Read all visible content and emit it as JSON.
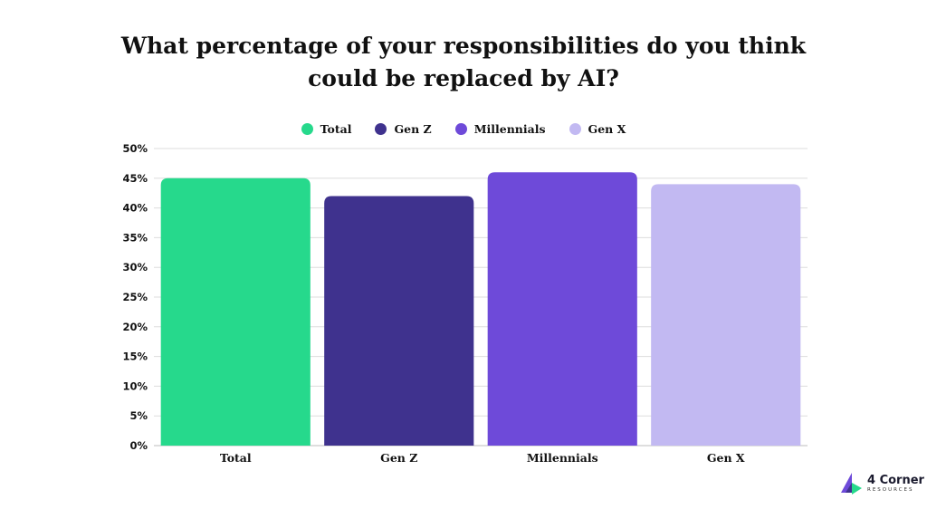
{
  "chart_data": {
    "type": "bar",
    "title": "What percentage of your responsibilities do you think could be replaced by AI?",
    "categories": [
      "Total",
      "Gen Z",
      "Millennials",
      "Gen X"
    ],
    "values": [
      45,
      42,
      46,
      44
    ],
    "colors": [
      "#26d98c",
      "#3f328e",
      "#6e4ad9",
      "#c2b9f2"
    ],
    "yticks": [
      "0%",
      "5%",
      "10%",
      "15%",
      "20%",
      "25%",
      "30%",
      "35%",
      "40%",
      "45%",
      "50%"
    ],
    "ylim": [
      0,
      50
    ],
    "grid": true,
    "legend_position": "top-center",
    "legend": [
      {
        "name": "Total",
        "color": "#26d98c"
      },
      {
        "name": "Gen Z",
        "color": "#3f328e"
      },
      {
        "name": "Millennials",
        "color": "#6e4ad9"
      },
      {
        "name": "Gen X",
        "color": "#c2b9f2"
      }
    ]
  },
  "logo": {
    "name": "4 Corner",
    "sub": "RESOURCES",
    "colors": [
      "#6e4ad9",
      "#26d98c"
    ]
  }
}
